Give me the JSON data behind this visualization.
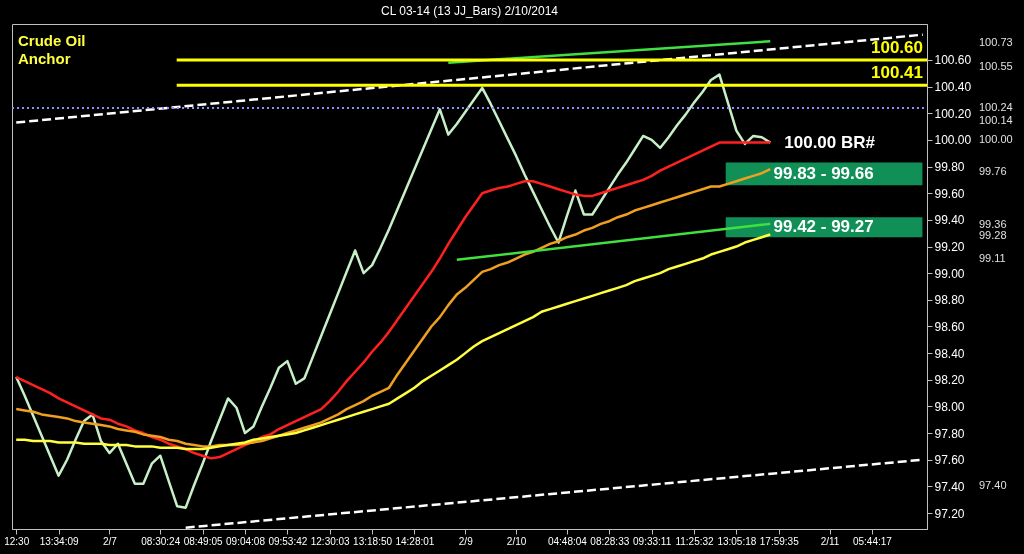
{
  "chart_data": {
    "type": "line",
    "title": "CL 03-14 (13 JJ_Bars)  2/10/2014",
    "categories": [
      "12:30",
      null,
      null,
      null,
      null,
      "13:34:09",
      null,
      null,
      null,
      null,
      null,
      "2/7",
      null,
      null,
      null,
      null,
      null,
      "08:30:24",
      null,
      null,
      null,
      null,
      "08:49:05",
      null,
      null,
      null,
      null,
      "09:04:08",
      null,
      null,
      null,
      null,
      "09:53:42",
      null,
      null,
      null,
      null,
      "12:30:03",
      null,
      null,
      null,
      null,
      "13:18:50",
      null,
      null,
      null,
      null,
      "14:28:01",
      null,
      null,
      null,
      null,
      null,
      "2/9",
      null,
      null,
      null,
      null,
      null,
      "2/10",
      null,
      null,
      null,
      null,
      null,
      "04:48:04",
      null,
      null,
      null,
      null,
      "08:28:33",
      null,
      null,
      null,
      null,
      "09:33:11",
      null,
      null,
      null,
      null,
      "11:25:32",
      null,
      null,
      null,
      null,
      "13:05:18",
      null,
      null,
      null,
      null,
      "17:59:35",
      null,
      null,
      null,
      null,
      null,
      "2/11",
      null,
      null,
      null,
      null,
      "05:44:17",
      null,
      null,
      null,
      null,
      null,
      null
    ],
    "series": [
      {
        "color": "#c8f0c8",
        "values": [
          98.22,
          98.08,
          97.93,
          97.78,
          97.63,
          97.48,
          97.6,
          97.75,
          97.89,
          97.94,
          97.74,
          97.65,
          97.72,
          97.57,
          97.42,
          97.42,
          97.57,
          97.63,
          97.44,
          97.25,
          97.24,
          97.41,
          97.57,
          97.74,
          97.9,
          98.06,
          97.99,
          97.8,
          97.85,
          98.0,
          98.14,
          98.29,
          98.34,
          98.17,
          98.21,
          98.37,
          98.53,
          98.69,
          98.85,
          99.01,
          99.17,
          99.0,
          99.06,
          99.19,
          99.33,
          99.48,
          99.63,
          99.78,
          99.93,
          100.08,
          100.23,
          100.04,
          100.12,
          100.21,
          100.3,
          100.39,
          100.27,
          100.14,
          100.01,
          99.88,
          99.74,
          99.61,
          99.48,
          99.35,
          99.23,
          99.43,
          99.62,
          99.44,
          99.44,
          99.54,
          99.64,
          99.74,
          99.83,
          99.93,
          100.03,
          100.0,
          99.94,
          100.02,
          100.11,
          100.19,
          100.28,
          100.36,
          100.45,
          100.49,
          100.28,
          100.07,
          99.97,
          100.03,
          100.02,
          99.98,
          null,
          null,
          null,
          null,
          null,
          null,
          null,
          null,
          null,
          null,
          null,
          null,
          null,
          null,
          null,
          null,
          null,
          null
        ]
      },
      {
        "color": "#ff2020",
        "values": [
          98.22,
          98.19,
          98.16,
          98.13,
          98.1,
          98.06,
          98.03,
          98.0,
          97.97,
          97.94,
          97.91,
          97.9,
          97.87,
          97.85,
          97.82,
          97.8,
          97.77,
          97.75,
          97.72,
          97.7,
          97.68,
          97.65,
          97.63,
          97.61,
          97.62,
          97.65,
          97.68,
          97.71,
          97.74,
          97.77,
          97.79,
          97.83,
          97.86,
          97.89,
          97.92,
          97.95,
          97.98,
          98.04,
          98.11,
          98.19,
          98.26,
          98.33,
          98.41,
          98.48,
          98.56,
          98.65,
          98.74,
          98.83,
          98.92,
          99.01,
          99.11,
          99.22,
          99.32,
          99.42,
          99.51,
          99.6,
          99.62,
          99.64,
          99.65,
          99.67,
          99.69,
          99.69,
          99.67,
          99.65,
          99.63,
          99.61,
          99.59,
          99.58,
          99.58,
          99.6,
          99.62,
          99.64,
          99.66,
          99.68,
          99.7,
          99.73,
          99.77,
          99.8,
          99.83,
          99.86,
          99.89,
          99.92,
          99.95,
          99.98,
          99.98,
          99.98,
          99.98,
          99.98,
          99.98,
          99.98,
          null,
          null,
          null,
          null,
          null,
          null,
          null,
          null,
          null,
          null,
          null,
          null,
          null,
          null,
          null,
          null,
          null,
          null
        ]
      },
      {
        "color": "#f0a020",
        "values": [
          97.98,
          97.97,
          97.96,
          97.94,
          97.93,
          97.92,
          97.91,
          97.89,
          97.88,
          97.87,
          97.86,
          97.85,
          97.83,
          97.82,
          97.81,
          97.79,
          97.78,
          97.77,
          97.75,
          97.74,
          97.72,
          97.71,
          97.7,
          97.7,
          97.71,
          97.71,
          97.71,
          97.72,
          97.73,
          97.74,
          97.76,
          97.78,
          97.8,
          97.82,
          97.84,
          97.86,
          97.88,
          97.91,
          97.94,
          97.98,
          98.01,
          98.04,
          98.08,
          98.11,
          98.14,
          98.24,
          98.33,
          98.42,
          98.51,
          98.6,
          98.67,
          98.76,
          98.84,
          98.89,
          98.95,
          99.01,
          99.03,
          99.06,
          99.08,
          99.11,
          99.14,
          99.16,
          99.19,
          99.22,
          99.24,
          99.27,
          99.29,
          99.32,
          99.34,
          99.37,
          99.39,
          99.42,
          99.44,
          99.47,
          99.49,
          99.51,
          99.53,
          99.55,
          99.57,
          99.59,
          99.61,
          99.63,
          99.65,
          99.65,
          99.67,
          99.69,
          99.71,
          99.73,
          99.75,
          99.78,
          null,
          null,
          null,
          null,
          null,
          null,
          null,
          null,
          null,
          null,
          null,
          null,
          null,
          null,
          null,
          null,
          null,
          null
        ]
      },
      {
        "color": "#ffff40",
        "values": [
          97.75,
          97.75,
          97.74,
          97.74,
          97.74,
          97.73,
          97.73,
          97.73,
          97.72,
          97.72,
          97.72,
          97.71,
          97.71,
          97.71,
          97.7,
          97.7,
          97.7,
          97.69,
          97.69,
          97.69,
          97.68,
          97.68,
          97.68,
          97.69,
          97.7,
          97.71,
          97.72,
          97.73,
          97.75,
          97.76,
          97.77,
          97.78,
          97.79,
          97.8,
          97.82,
          97.84,
          97.86,
          97.88,
          97.9,
          97.92,
          97.94,
          97.96,
          97.98,
          98.0,
          98.02,
          98.06,
          98.1,
          98.14,
          98.19,
          98.23,
          98.27,
          98.31,
          98.35,
          98.4,
          98.45,
          98.49,
          98.52,
          98.55,
          98.58,
          98.61,
          98.64,
          98.67,
          98.71,
          98.73,
          98.75,
          98.77,
          98.79,
          98.81,
          98.83,
          98.85,
          98.87,
          98.89,
          98.91,
          98.94,
          98.96,
          98.98,
          99.0,
          99.03,
          99.05,
          99.07,
          99.09,
          99.11,
          99.14,
          99.16,
          99.18,
          99.2,
          99.23,
          99.25,
          99.27,
          99.29,
          null,
          null,
          null,
          null,
          null,
          null,
          null,
          null,
          null,
          null,
          null,
          null,
          null,
          null,
          null,
          null,
          null,
          null
        ]
      },
      {
        "color": "#ffffff",
        "line_style": "dashed",
        "values": [
          100.13,
          null,
          null,
          null,
          null,
          null,
          null,
          null,
          null,
          null,
          null,
          null,
          null,
          null,
          null,
          null,
          null,
          null,
          null,
          null,
          null,
          null,
          null,
          null,
          null,
          null,
          null,
          null,
          null,
          null,
          null,
          null,
          null,
          null,
          null,
          null,
          null,
          null,
          null,
          null,
          null,
          null,
          null,
          null,
          null,
          null,
          null,
          null,
          null,
          null,
          null,
          null,
          null,
          null,
          null,
          null,
          null,
          null,
          null,
          null,
          null,
          null,
          null,
          null,
          null,
          null,
          null,
          null,
          null,
          null,
          null,
          null,
          null,
          null,
          null,
          null,
          null,
          null,
          null,
          null,
          null,
          null,
          null,
          null,
          null,
          null,
          null,
          null,
          null,
          null,
          null,
          null,
          null,
          null,
          null,
          null,
          null,
          null,
          null,
          null,
          null,
          null,
          null,
          null,
          null,
          null,
          null,
          100.79
        ]
      },
      {
        "color": "#ffffff",
        "line_style": "dashed",
        "values": [
          null,
          null,
          null,
          null,
          null,
          null,
          null,
          null,
          null,
          null,
          null,
          null,
          null,
          null,
          null,
          null,
          null,
          null,
          null,
          null,
          97.09,
          null,
          null,
          null,
          null,
          null,
          null,
          null,
          null,
          null,
          null,
          null,
          null,
          null,
          null,
          null,
          null,
          null,
          null,
          null,
          null,
          null,
          null,
          null,
          null,
          null,
          null,
          null,
          null,
          null,
          null,
          null,
          null,
          null,
          null,
          null,
          null,
          null,
          null,
          null,
          null,
          null,
          null,
          null,
          null,
          null,
          null,
          null,
          null,
          null,
          null,
          null,
          null,
          null,
          null,
          null,
          null,
          null,
          null,
          null,
          null,
          null,
          null,
          null,
          null,
          null,
          null,
          null,
          null,
          null,
          null,
          null,
          null,
          null,
          null,
          null,
          null,
          null,
          null,
          null,
          null,
          null,
          null,
          null,
          null,
          null,
          null,
          97.6
        ]
      },
      {
        "color": "#40e040",
        "values": [
          null,
          null,
          null,
          null,
          null,
          null,
          null,
          null,
          null,
          null,
          null,
          null,
          null,
          null,
          null,
          null,
          null,
          null,
          null,
          null,
          null,
          null,
          null,
          null,
          null,
          null,
          null,
          null,
          null,
          null,
          null,
          null,
          null,
          null,
          null,
          null,
          null,
          null,
          null,
          null,
          null,
          null,
          null,
          null,
          null,
          null,
          null,
          null,
          null,
          null,
          null,
          100.58,
          null,
          null,
          null,
          null,
          null,
          null,
          null,
          null,
          null,
          null,
          null,
          null,
          null,
          null,
          null,
          null,
          null,
          null,
          null,
          null,
          null,
          null,
          null,
          null,
          null,
          null,
          null,
          null,
          null,
          null,
          null,
          null,
          null,
          null,
          null,
          null,
          null,
          100.74,
          null,
          null,
          null,
          null,
          null,
          null,
          null,
          null,
          null,
          null,
          null,
          null,
          null,
          null,
          null,
          null,
          null,
          null
        ]
      },
      {
        "color": "#40e040",
        "values": [
          null,
          null,
          null,
          null,
          null,
          null,
          null,
          null,
          null,
          null,
          null,
          null,
          null,
          null,
          null,
          null,
          null,
          null,
          null,
          null,
          null,
          null,
          null,
          null,
          null,
          null,
          null,
          null,
          null,
          null,
          null,
          null,
          null,
          null,
          null,
          null,
          null,
          null,
          null,
          null,
          null,
          null,
          null,
          null,
          null,
          null,
          null,
          null,
          null,
          null,
          null,
          null,
          99.1,
          null,
          null,
          null,
          null,
          null,
          null,
          null,
          null,
          null,
          null,
          null,
          null,
          null,
          null,
          null,
          null,
          null,
          null,
          null,
          null,
          null,
          null,
          null,
          null,
          null,
          null,
          null,
          null,
          null,
          null,
          null,
          null,
          null,
          null,
          null,
          null,
          99.37,
          null,
          null,
          null,
          null,
          null,
          null,
          null,
          null,
          null,
          null,
          null,
          null,
          null,
          null,
          null,
          null,
          null,
          null
        ]
      }
    ],
    "ylim": [
      97.08,
      100.87
    ],
    "yticks": [
      {
        "value": 97.2,
        "label": "97.20"
      },
      {
        "value": 97.4,
        "label": "97.40"
      },
      {
        "value": 97.6,
        "label": "97.60"
      },
      {
        "value": 97.8,
        "label": "97.80"
      },
      {
        "value": 98.0,
        "label": "98.00"
      },
      {
        "value": 98.2,
        "label": "98.20"
      },
      {
        "value": 98.4,
        "label": "98.40"
      },
      {
        "value": 98.6,
        "label": "98.60"
      },
      {
        "value": 98.8,
        "label": "98.80"
      },
      {
        "value": 99.0,
        "label": "99.00"
      },
      {
        "value": 99.2,
        "label": "99.20"
      },
      {
        "value": 99.4,
        "label": "99.40"
      },
      {
        "value": 99.6,
        "label": "99.60"
      },
      {
        "value": 99.8,
        "label": "99.80"
      },
      {
        "value": 100.0,
        "label": "100.00"
      },
      {
        "value": 100.2,
        "label": "100.20"
      },
      {
        "value": 100.4,
        "label": "100.40"
      },
      {
        "value": 100.6,
        "label": "100.60"
      }
    ],
    "ref_lines": [
      {
        "axis": "y",
        "value": 100.6,
        "label": "100.60",
        "color": "#ffff00"
      },
      {
        "axis": "y",
        "value": 100.41,
        "label": "100.41",
        "color": "#ffff00"
      },
      {
        "axis": "y",
        "value": 100.24,
        "color": "#9090ff",
        "line_style": "dotted"
      }
    ],
    "bands": [
      {
        "axis": "y",
        "from": 99.66,
        "to": 99.83,
        "label": "99.83 - 99.66",
        "color": "#12a060"
      },
      {
        "axis": "y",
        "from": 99.27,
        "to": 99.42,
        "label": "99.42 - 99.27",
        "color": "#12a060"
      }
    ],
    "annotations": [
      "Crude Oil\nAnchor",
      "100.00 BR#",
      "100.73",
      "100.55",
      "100.24",
      "100.14",
      "100.00",
      "99.76",
      "99.36",
      "99.28",
      "99.11",
      "97.40"
    ],
    "grid": false,
    "marker": "none"
  }
}
